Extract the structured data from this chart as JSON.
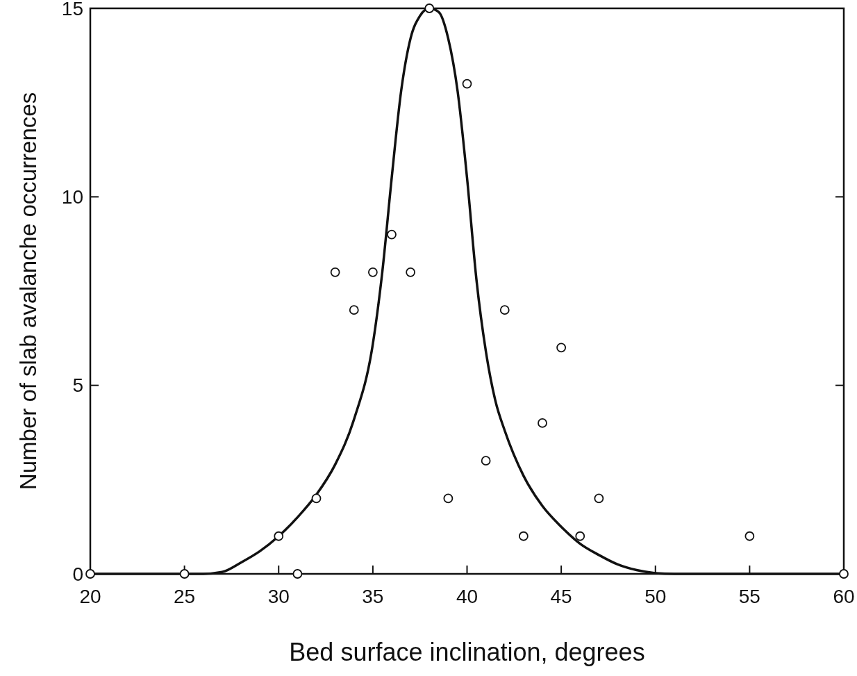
{
  "chart_data": {
    "type": "scatter",
    "xlabel": "Bed surface inclination, degrees",
    "ylabel": "Number of slab avalanche occurrences",
    "xlim": [
      20,
      60
    ],
    "ylim": [
      0,
      15
    ],
    "xticks": [
      20,
      25,
      30,
      35,
      40,
      45,
      50,
      55,
      60
    ],
    "yticks": [
      0,
      5,
      10,
      15
    ],
    "grid": false,
    "series": [
      {
        "type": "scatter",
        "color": "#111111",
        "marker": "circle",
        "x": [
          20,
          25,
          30,
          31,
          32,
          33,
          34,
          35,
          36,
          37,
          38,
          39,
          40,
          41,
          42,
          43,
          44,
          45,
          46,
          47,
          55,
          60
        ],
        "values": [
          0,
          0,
          1,
          0,
          2,
          8,
          7,
          8,
          9,
          8,
          15,
          2,
          13,
          3,
          7,
          1,
          4,
          6,
          1,
          2,
          1,
          0
        ]
      },
      {
        "type": "line",
        "color": "#111111",
        "marker": "none",
        "line_style": "solid",
        "x": [
          20,
          26,
          27,
          28,
          29,
          30,
          31,
          32,
          33,
          34,
          35,
          35.5,
          36,
          36.5,
          37,
          37.5,
          38,
          38.5,
          39,
          39.5,
          40,
          40.5,
          41,
          41.5,
          42,
          43,
          44,
          45,
          46,
          47,
          48,
          49,
          50,
          51,
          60
        ],
        "values": [
          0,
          0,
          0.05,
          0.3,
          0.6,
          1,
          1.5,
          2.1,
          2.9,
          4.1,
          6.1,
          8,
          10.5,
          12.8,
          14.2,
          14.8,
          15,
          14.9,
          14.2,
          12.8,
          10.5,
          7.8,
          5.9,
          4.6,
          3.8,
          2.6,
          1.8,
          1.25,
          0.8,
          0.5,
          0.25,
          0.1,
          0.02,
          0,
          0
        ]
      }
    ]
  }
}
